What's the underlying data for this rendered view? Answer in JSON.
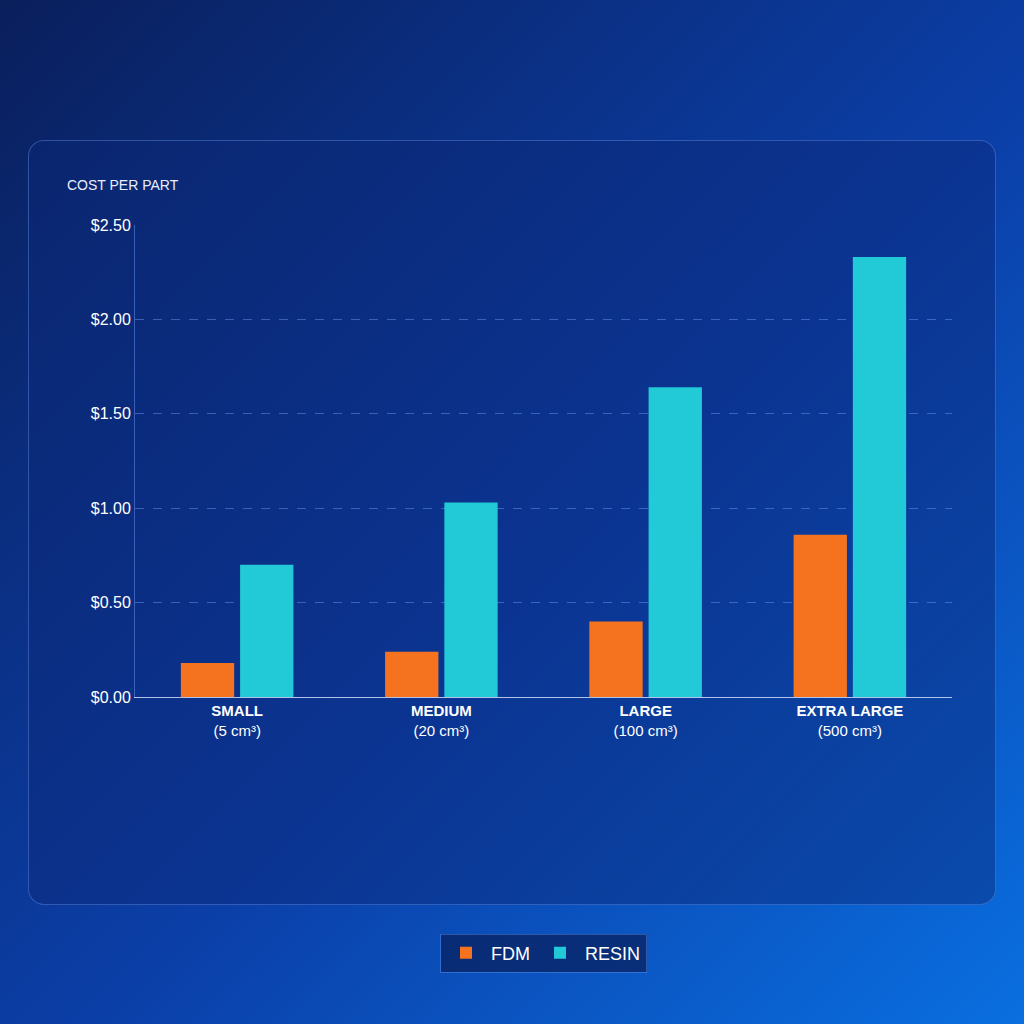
{
  "chart_data": {
    "type": "bar",
    "title": "COST PER PART",
    "categories": [
      "SMALL (5 cm³)",
      "MEDIUM (20 cm³)",
      "LARGE (100 cm³)",
      "EXTRA LARGE (500 cm³)"
    ],
    "series": [
      {
        "name": "FDM",
        "color": "#f5731f",
        "values": [
          0.18,
          0.24,
          0.4,
          0.86
        ]
      },
      {
        "name": "RESIN",
        "color": "#22c9d6",
        "values": [
          0.7,
          1.03,
          1.64,
          2.33
        ]
      }
    ],
    "ylim": [
      0,
      2.5
    ],
    "yticks": [
      {
        "value": 0,
        "label": "$0.00"
      },
      {
        "value": 0.5,
        "label": "$0.50"
      },
      {
        "value": 1,
        "label": "$1.00"
      },
      {
        "value": 1.5,
        "label": "$1.50"
      },
      {
        "value": 2,
        "label": "$2.00"
      },
      {
        "value": 2.5,
        "label": "$2.50"
      }
    ],
    "grid": true,
    "legend": "bottom"
  }
}
